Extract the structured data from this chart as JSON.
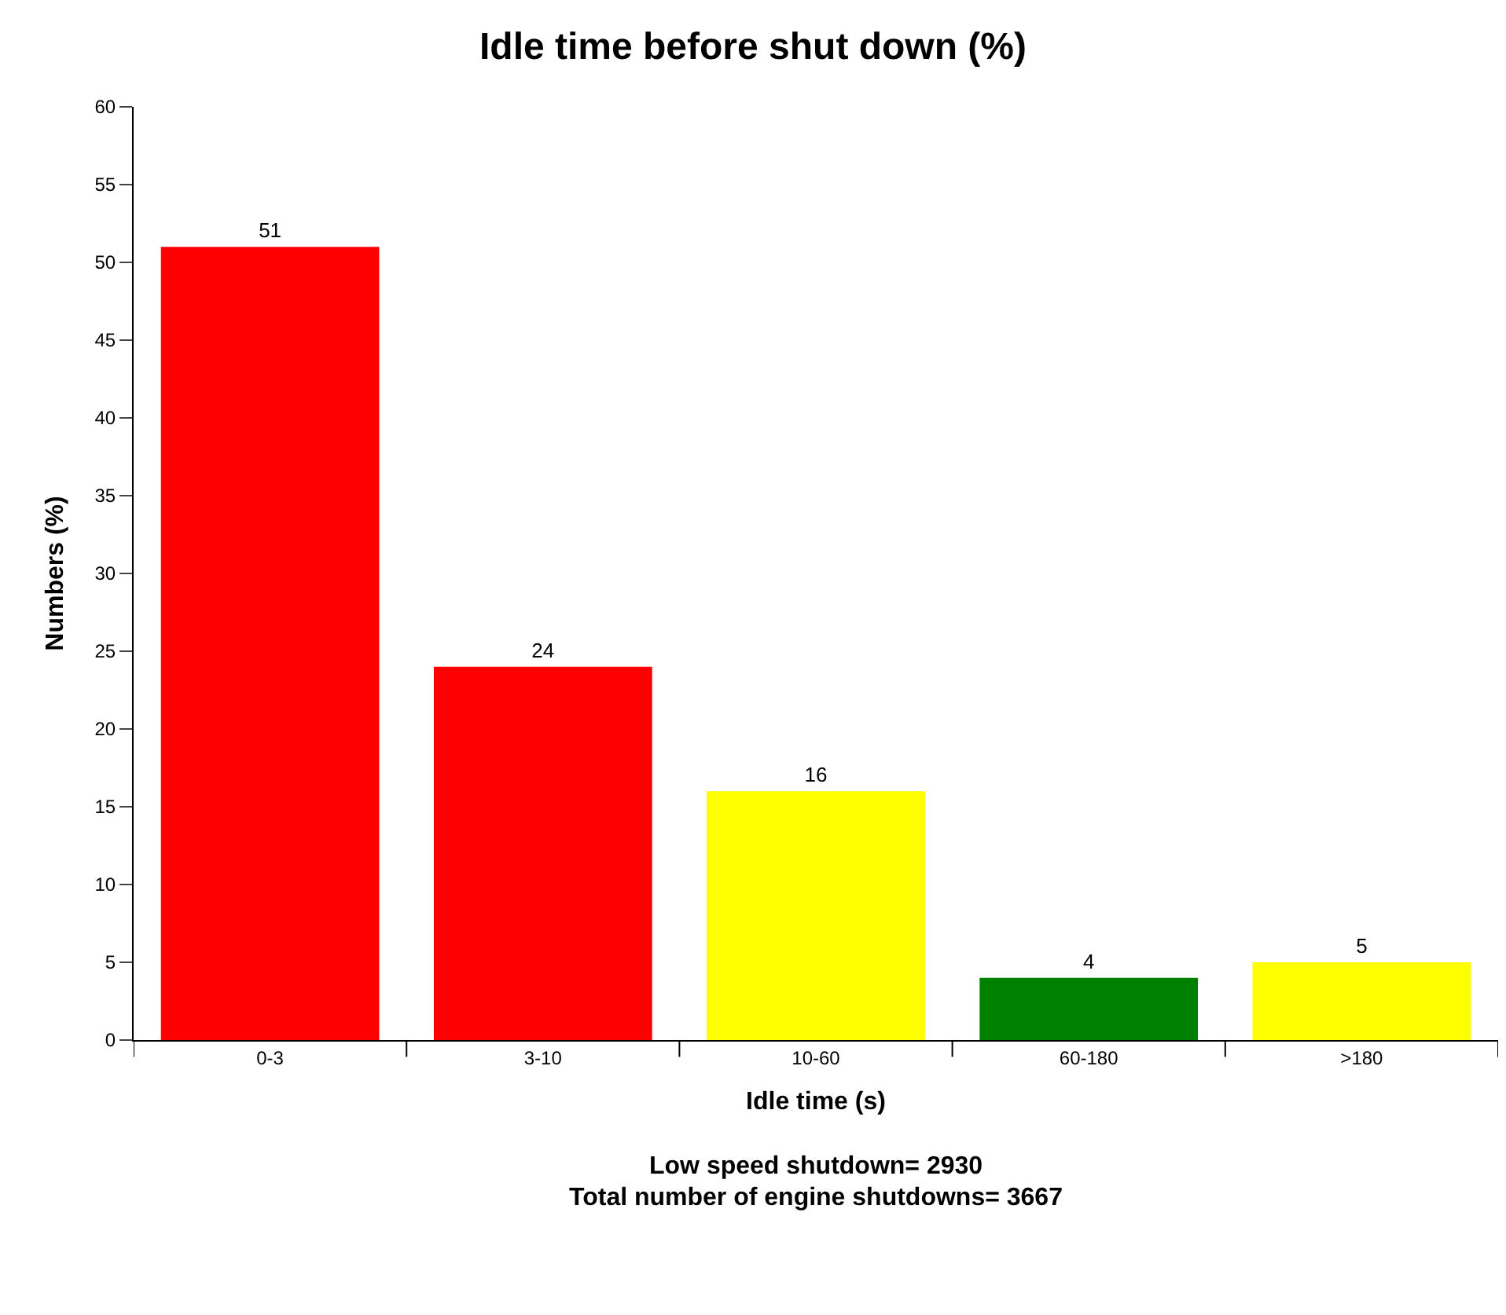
{
  "chart_data": {
    "type": "bar",
    "title": "Idle time before shut down (%)",
    "xlabel": "Idle time (s)",
    "ylabel": "Numbers (%)",
    "categories": [
      "0-3",
      "3-10",
      "10-60",
      "60-180",
      ">180"
    ],
    "values": [
      51,
      24,
      16,
      4,
      5
    ],
    "colors": [
      "#ff0000",
      "#ff0000",
      "#ffff00",
      "#008000",
      "#ffff00"
    ],
    "ylim": [
      0,
      60
    ],
    "yticks": [
      0,
      5,
      10,
      15,
      20,
      25,
      30,
      35,
      40,
      45,
      50,
      55,
      60
    ],
    "data_labels": true,
    "annotations": [
      "Low speed shutdown= 2930",
      "Total number of engine shutdowns= 3667"
    ]
  }
}
